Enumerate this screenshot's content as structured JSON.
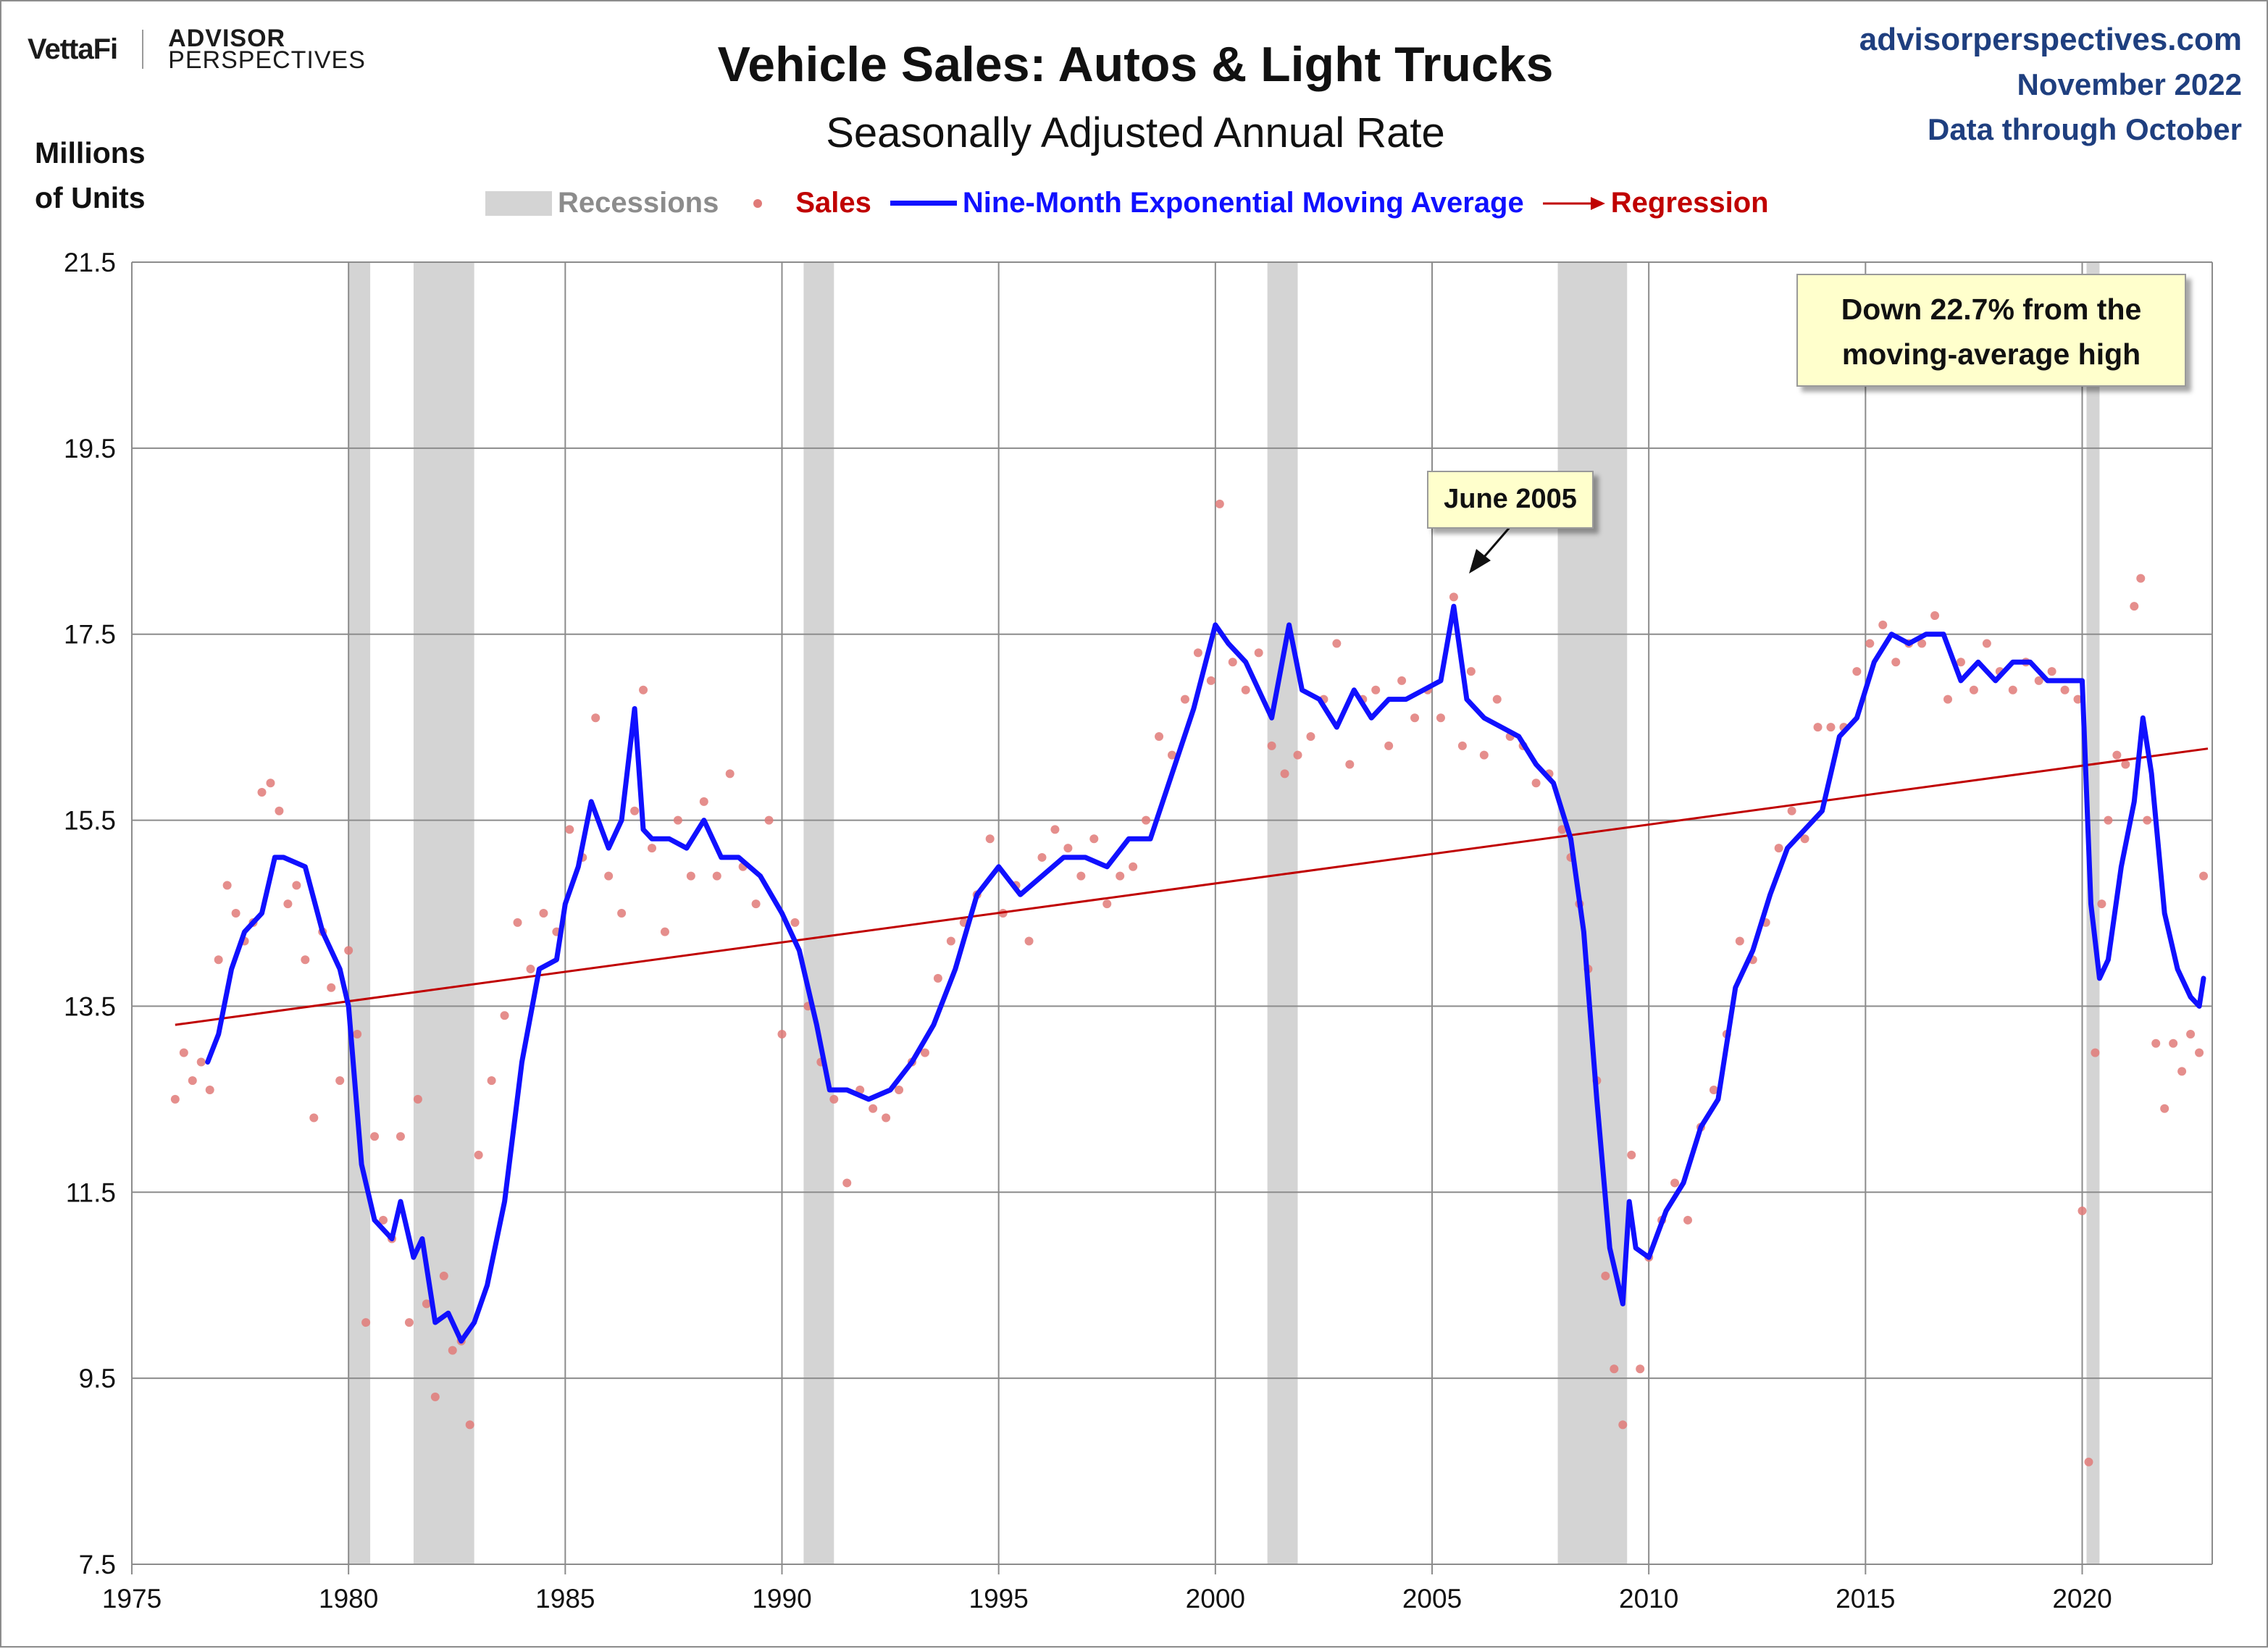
{
  "header": {
    "logo_left": "VettaFi",
    "logo_right_line1": "ADVISOR",
    "logo_right_line2": "PERSPECTIVES",
    "title": "Vehicle Sales: Autos & Light Trucks",
    "subtitle": "Seasonally Adjusted Annual Rate",
    "source_line1": "advisorperspectives.com",
    "source_line2": "November 2022",
    "source_line3": "Data through October",
    "y_units_line1": "Millions",
    "y_units_line2": "of Units"
  },
  "legend": {
    "recessions": "Recessions",
    "sales": "Sales",
    "ema": "Nine-Month Exponential Moving Average",
    "regression": "Regression"
  },
  "annotations": {
    "note_line1": "Down 22.7% from the",
    "note_line2": "moving-average high",
    "june": "June 2005"
  },
  "colors": {
    "recession": "#d4d4d4",
    "sales": "#e07a78",
    "ema": "#1010ff",
    "regression": "#c00000",
    "grid": "#8c8c8c",
    "title": "#111111",
    "source": "#1f3f7f",
    "legend_sales": "#c00000",
    "legend_ema": "#1010ff",
    "legend_recession": "#8c8c8c"
  },
  "chart_data": {
    "type": "line",
    "title": "Vehicle Sales: Autos & Light Trucks",
    "subtitle": "Seasonally Adjusted Annual Rate",
    "ylabel": "Millions of Units",
    "xlabel": "",
    "ylim": [
      7.5,
      21.5
    ],
    "xlim": [
      1975,
      2023
    ],
    "y_ticks": [
      "7.5",
      "9.5",
      "11.5",
      "13.5",
      "15.5",
      "17.5",
      "19.5",
      "21.5"
    ],
    "x_ticks": [
      "1975",
      "1980",
      "1985",
      "1990",
      "1995",
      "2000",
      "2005",
      "2010",
      "2015",
      "2020"
    ],
    "recessions": [
      [
        1980.0,
        1980.5
      ],
      [
        1981.5,
        1982.9
      ],
      [
        1990.5,
        1991.2
      ],
      [
        2001.2,
        2001.9
      ],
      [
        2007.9,
        2009.5
      ],
      [
        2020.1,
        2020.4
      ]
    ],
    "regression": {
      "start": [
        1976.0,
        13.3
      ],
      "end": [
        2022.9,
        16.27
      ]
    },
    "ema": {
      "name": "Nine-Month Exponential Moving Average",
      "x": [
        1976.75,
        1977.0,
        1977.3,
        1977.6,
        1978.0,
        1978.3,
        1978.5,
        1979.0,
        1979.4,
        1979.8,
        1980.0,
        1980.3,
        1980.6,
        1981.0,
        1981.2,
        1981.5,
        1981.7,
        1982.0,
        1982.3,
        1982.6,
        1982.9,
        1983.2,
        1983.6,
        1984.0,
        1984.4,
        1984.8,
        1985.0,
        1985.3,
        1985.6,
        1986.0,
        1986.3,
        1986.6,
        1986.8,
        1987.0,
        1987.4,
        1987.8,
        1988.2,
        1988.6,
        1989.0,
        1989.5,
        1990.0,
        1990.4,
        1990.8,
        1991.1,
        1991.5,
        1992.0,
        1992.5,
        1993.0,
        1993.5,
        1994.0,
        1994.5,
        1995.0,
        1995.5,
        1996.0,
        1996.5,
        1997.0,
        1997.5,
        1998.0,
        1998.5,
        1999.0,
        1999.5,
        2000.0,
        2000.3,
        2000.7,
        2001.0,
        2001.3,
        2001.7,
        2002.0,
        2002.4,
        2002.8,
        2003.2,
        2003.6,
        2004.0,
        2004.4,
        2004.8,
        2005.2,
        2005.5,
        2005.8,
        2006.2,
        2006.6,
        2007.0,
        2007.4,
        2007.8,
        2008.2,
        2008.5,
        2008.8,
        2009.1,
        2009.4,
        2009.55,
        2009.7,
        2010.0,
        2010.4,
        2010.8,
        2011.2,
        2011.6,
        2012.0,
        2012.4,
        2012.8,
        2013.2,
        2013.6,
        2014.0,
        2014.4,
        2014.8,
        2015.2,
        2015.6,
        2016.0,
        2016.4,
        2016.8,
        2017.2,
        2017.6,
        2018.0,
        2018.4,
        2018.8,
        2019.2,
        2019.6,
        2020.0,
        2020.2,
        2020.4,
        2020.6,
        2020.9,
        2021.2,
        2021.4,
        2021.6,
        2021.9,
        2022.2,
        2022.5,
        2022.7,
        2022.8
      ],
      "values": [
        12.9,
        13.2,
        13.9,
        14.3,
        14.5,
        15.1,
        15.1,
        15.0,
        14.3,
        13.9,
        13.5,
        11.8,
        11.2,
        11.0,
        11.4,
        10.8,
        11.0,
        10.1,
        10.2,
        9.9,
        10.1,
        10.5,
        11.4,
        12.9,
        13.9,
        14.0,
        14.6,
        15.0,
        15.7,
        15.2,
        15.5,
        16.7,
        15.4,
        15.3,
        15.3,
        15.2,
        15.5,
        15.1,
        15.1,
        14.9,
        14.5,
        14.1,
        13.3,
        12.6,
        12.6,
        12.5,
        12.6,
        12.9,
        13.3,
        13.9,
        14.7,
        15.0,
        14.7,
        14.9,
        15.1,
        15.1,
        15.0,
        15.3,
        15.3,
        16.0,
        16.7,
        17.6,
        17.4,
        17.2,
        16.9,
        16.6,
        17.6,
        16.9,
        16.8,
        16.5,
        16.9,
        16.6,
        16.8,
        16.8,
        16.9,
        17.0,
        17.8,
        16.8,
        16.6,
        16.5,
        16.4,
        16.1,
        15.9,
        15.3,
        14.3,
        12.5,
        10.9,
        10.3,
        11.4,
        10.9,
        10.8,
        11.3,
        11.6,
        12.2,
        12.5,
        13.7,
        14.1,
        14.7,
        15.2,
        15.4,
        15.6,
        16.4,
        16.6,
        17.2,
        17.5,
        17.4,
        17.5,
        17.5,
        17.0,
        17.2,
        17.0,
        17.2,
        17.2,
        17.0,
        17.0,
        17.0,
        14.6,
        13.8,
        14.0,
        15.0,
        15.7,
        16.6,
        16.0,
        14.5,
        13.9,
        13.6,
        13.5,
        13.8
      ]
    },
    "sales": {
      "name": "Sales",
      "x": [
        1976.0,
        1976.2,
        1976.4,
        1976.6,
        1976.8,
        1977.0,
        1977.2,
        1977.4,
        1977.6,
        1977.8,
        1978.0,
        1978.2,
        1978.4,
        1978.6,
        1978.8,
        1979.0,
        1979.2,
        1979.4,
        1979.6,
        1979.8,
        1980.0,
        1980.2,
        1980.4,
        1980.6,
        1980.8,
        1981.0,
        1981.2,
        1981.4,
        1981.6,
        1981.8,
        1982.0,
        1982.2,
        1982.4,
        1982.6,
        1982.8,
        1983.0,
        1983.3,
        1983.6,
        1983.9,
        1984.2,
        1984.5,
        1984.8,
        1985.1,
        1985.4,
        1985.7,
        1986.0,
        1986.3,
        1986.6,
        1986.8,
        1987.0,
        1987.3,
        1987.6,
        1987.9,
        1988.2,
        1988.5,
        1988.8,
        1989.1,
        1989.4,
        1989.7,
        1990.0,
        1990.3,
        1990.6,
        1990.9,
        1991.2,
        1991.5,
        1991.8,
        1992.1,
        1992.4,
        1992.7,
        1993.0,
        1993.3,
        1993.6,
        1993.9,
        1994.2,
        1994.5,
        1994.8,
        1995.1,
        1995.4,
        1995.7,
        1996.0,
        1996.3,
        1996.6,
        1996.9,
        1997.2,
        1997.5,
        1997.8,
        1998.1,
        1998.4,
        1998.7,
        1999.0,
        1999.3,
        1999.6,
        1999.9,
        2000.1,
        2000.4,
        2000.7,
        2001.0,
        2001.3,
        2001.6,
        2001.9,
        2002.2,
        2002.5,
        2002.8,
        2003.1,
        2003.4,
        2003.7,
        2004.0,
        2004.3,
        2004.6,
        2004.9,
        2005.2,
        2005.5,
        2005.7,
        2005.9,
        2006.2,
        2006.5,
        2006.8,
        2007.1,
        2007.4,
        2007.7,
        2008.0,
        2008.2,
        2008.4,
        2008.6,
        2008.8,
        2009.0,
        2009.2,
        2009.4,
        2009.6,
        2009.8,
        2010.0,
        2010.3,
        2010.6,
        2010.9,
        2011.2,
        2011.5,
        2011.8,
        2012.1,
        2012.4,
        2012.7,
        2013.0,
        2013.3,
        2013.6,
        2013.9,
        2014.2,
        2014.5,
        2014.8,
        2015.1,
        2015.4,
        2015.7,
        2016.0,
        2016.3,
        2016.6,
        2016.9,
        2017.2,
        2017.5,
        2017.8,
        2018.1,
        2018.4,
        2018.7,
        2019.0,
        2019.3,
        2019.6,
        2019.9,
        2020.0,
        2020.15,
        2020.3,
        2020.45,
        2020.6,
        2020.8,
        2021.0,
        2021.2,
        2021.35,
        2021.5,
        2021.7,
        2021.9,
        2022.1,
        2022.3,
        2022.5,
        2022.7,
        2022.8
      ],
      "values": [
        12.5,
        13.0,
        12.7,
        12.9,
        12.6,
        14.0,
        14.8,
        14.5,
        14.2,
        14.4,
        15.8,
        15.9,
        15.6,
        14.6,
        14.8,
        14.0,
        12.3,
        14.3,
        13.7,
        12.7,
        14.1,
        13.2,
        10.1,
        12.1,
        11.2,
        11.0,
        12.1,
        10.1,
        12.5,
        10.3,
        9.3,
        10.6,
        9.8,
        9.9,
        9.0,
        11.9,
        12.7,
        13.4,
        14.4,
        13.9,
        14.5,
        14.3,
        15.4,
        15.1,
        16.6,
        14.9,
        14.5,
        15.6,
        16.9,
        15.2,
        14.3,
        15.5,
        14.9,
        15.7,
        14.9,
        16.0,
        15.0,
        14.6,
        15.5,
        13.2,
        14.4,
        13.5,
        12.9,
        12.5,
        11.6,
        12.6,
        12.4,
        12.3,
        12.6,
        12.9,
        13.0,
        13.8,
        14.2,
        14.4,
        14.7,
        15.3,
        14.5,
        14.8,
        14.2,
        15.1,
        15.4,
        15.2,
        14.9,
        15.3,
        14.6,
        14.9,
        15.0,
        15.5,
        16.4,
        16.2,
        16.8,
        17.3,
        17.0,
        18.9,
        17.2,
        16.9,
        17.3,
        16.3,
        16.0,
        16.2,
        16.4,
        16.8,
        17.4,
        16.1,
        16.8,
        16.9,
        16.3,
        17.0,
        16.6,
        16.9,
        16.6,
        17.9,
        16.3,
        17.1,
        16.2,
        16.8,
        16.4,
        16.3,
        15.9,
        16.0,
        15.4,
        15.1,
        14.6,
        13.9,
        12.7,
        10.6,
        9.6,
        9.0,
        11.9,
        9.6,
        10.8,
        11.2,
        11.6,
        11.2,
        12.2,
        12.6,
        13.2,
        14.2,
        14.0,
        14.4,
        15.2,
        15.6,
        15.3,
        16.5,
        16.5,
        16.5,
        17.1,
        17.4,
        17.6,
        17.2,
        17.4,
        17.4,
        17.7,
        16.8,
        17.2,
        16.9,
        17.4,
        17.1,
        16.9,
        17.2,
        17.0,
        17.1,
        16.9,
        16.8,
        11.3,
        8.6,
        13.0,
        14.6,
        15.5,
        16.2,
        16.1,
        17.8,
        18.1,
        15.5,
        13.1,
        12.4,
        13.1,
        12.8,
        13.2,
        13.0,
        14.9
      ]
    }
  }
}
